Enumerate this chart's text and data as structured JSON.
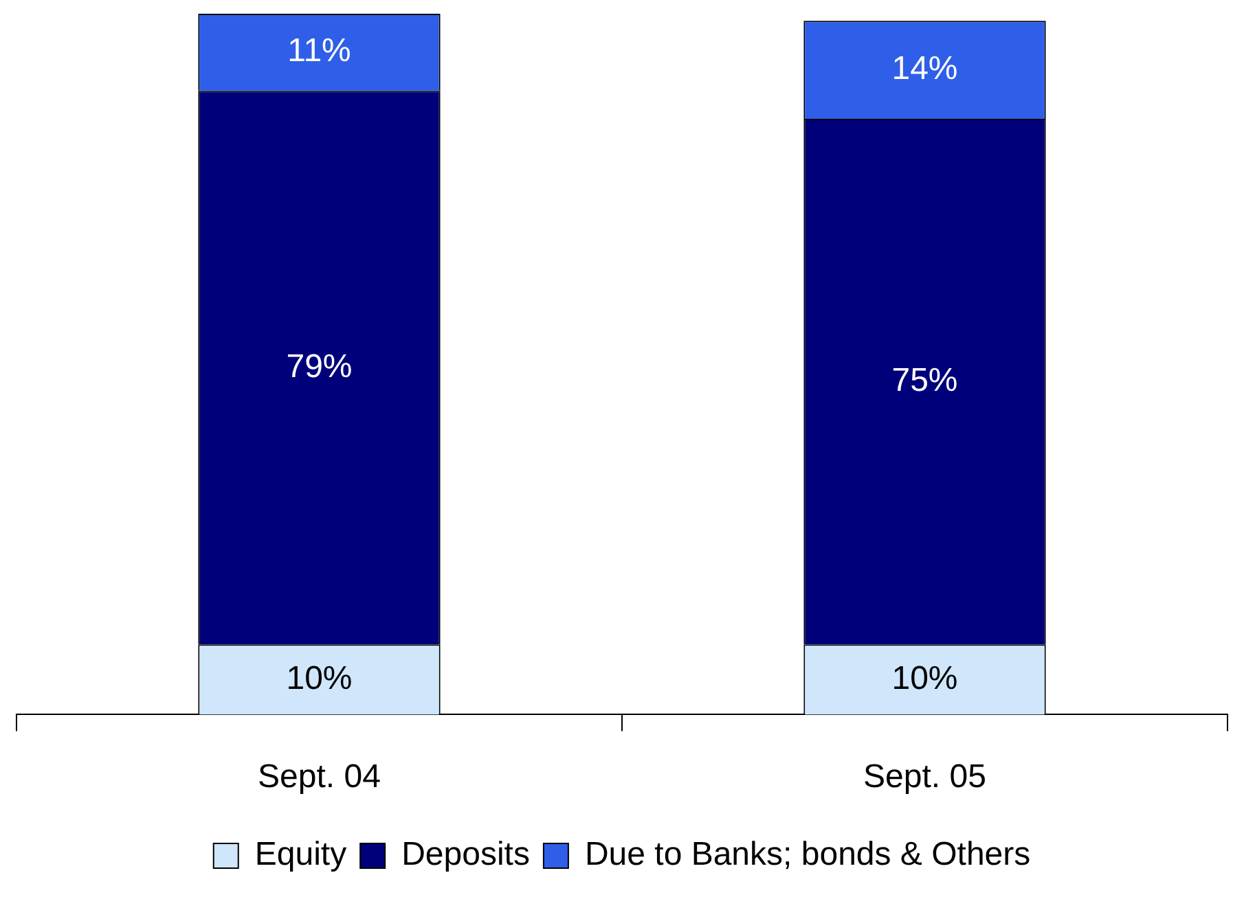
{
  "chart_data": {
    "type": "bar",
    "stacked": true,
    "categories": [
      "Sept. 04",
      "Sept. 05"
    ],
    "series": [
      {
        "name": "Equity",
        "color": "#cfe6fb",
        "values": [
          10,
          10
        ],
        "value_labels": [
          "10%",
          "10%"
        ]
      },
      {
        "name": "Deposits",
        "color": "#00007a",
        "values": [
          79,
          75
        ],
        "value_labels": [
          "79%",
          "75%"
        ]
      },
      {
        "name": "Due to Banks; bonds & Others",
        "color": "#2f5fe8",
        "values": [
          11,
          14
        ],
        "value_labels": [
          "11%",
          "14%"
        ]
      }
    ],
    "legend": "bottom",
    "grid": false
  }
}
